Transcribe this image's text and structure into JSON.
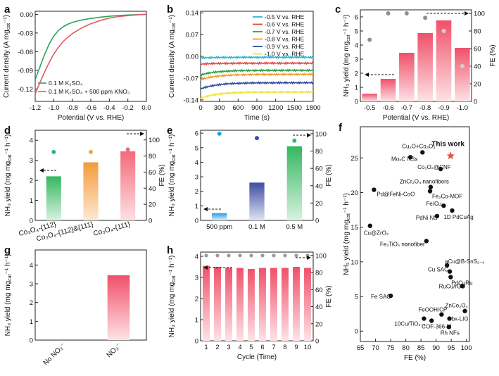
{
  "chart_data": [
    {
      "panel": "a",
      "type": "line",
      "xlabel": "Potential (V vs. RHE)",
      "ylabel": "Current density (A mg",
      "ylabel_sub": "cat",
      "ylabel_tail": "⁻¹)",
      "xlim": [
        -1.2,
        0.0
      ],
      "ylim": [
        -0.14,
        0.005
      ],
      "xticks": [
        -1.2,
        -1.0,
        -0.8,
        -0.6,
        -0.4,
        -0.2,
        0.0
      ],
      "xtick_labels": [
        "-1.2",
        "-1.0",
        "-0.8",
        "-0.6",
        "-0.4",
        "-0.2",
        "0.0"
      ],
      "yticks": [
        0.0,
        -0.03,
        -0.06,
        -0.09,
        -0.12
      ],
      "ytick_labels": [
        "0.00",
        "-0.03",
        "-0.06",
        "-0.09",
        "-0.12"
      ],
      "series": [
        {
          "name": "0.1 M K₂SO₄",
          "color": "#2ca25f",
          "x": [
            -1.2,
            -1.15,
            -1.1,
            -1.05,
            -1.0,
            -0.95,
            -0.9,
            -0.85,
            -0.8,
            -0.7,
            -0.6,
            -0.5,
            -0.4,
            -0.3,
            -0.2,
            -0.1,
            0.0
          ],
          "y": [
            -0.105,
            -0.085,
            -0.065,
            -0.048,
            -0.035,
            -0.026,
            -0.02,
            -0.016,
            -0.013,
            -0.009,
            -0.0065,
            -0.0045,
            -0.003,
            -0.0018,
            -0.001,
            -0.0004,
            0.0
          ]
        },
        {
          "name": "0.1 M K₂SO₄ + 500 ppm KNO₃",
          "color": "#e05a63",
          "x": [
            -1.2,
            -1.15,
            -1.1,
            -1.05,
            -1.0,
            -0.95,
            -0.9,
            -0.85,
            -0.8,
            -0.7,
            -0.6,
            -0.5,
            -0.4,
            -0.3,
            -0.2,
            -0.1,
            0.0
          ],
          "y": [
            -0.128,
            -0.11,
            -0.093,
            -0.078,
            -0.064,
            -0.053,
            -0.044,
            -0.037,
            -0.031,
            -0.022,
            -0.015,
            -0.01,
            -0.006,
            -0.0035,
            -0.002,
            -0.0008,
            0.0
          ]
        }
      ]
    },
    {
      "panel": "b",
      "type": "line",
      "xlabel": "Time (s)",
      "ylabel": "Current density (A mg",
      "ylabel_sub": "cat",
      "ylabel_tail": "⁻¹)",
      "xlim": [
        0,
        1800
      ],
      "ylim": [
        -0.145,
        0.145
      ],
      "xticks": [
        0,
        300,
        600,
        900,
        1200,
        1500,
        1800
      ],
      "xtick_labels": [
        "0",
        "300",
        "600",
        "900",
        "1200",
        "1500",
        "1800"
      ],
      "yticks": [
        0.14,
        0.07,
        0.0,
        -0.07,
        -0.14
      ],
      "ytick_labels": [
        "0.14",
        "0.07",
        "0.00",
        "-0.07",
        "-0.14"
      ],
      "series": [
        {
          "name": "-0.5 V vs. RHE",
          "color": "#27b6d6",
          "start": -0.005,
          "end": -0.003
        },
        {
          "name": "-0.6 V vs. RHE",
          "color": "#e4473f",
          "start": -0.025,
          "end": -0.022
        },
        {
          "name": "-0.7 V vs. RHE",
          "color": "#2e9e45",
          "start": -0.06,
          "end": -0.045
        },
        {
          "name": "-0.8 V vs. RHE",
          "color": "#f39c2b",
          "start": -0.075,
          "end": -0.058
        },
        {
          "name": "-0.9 V vs. RHE",
          "color": "#2d4aa0",
          "start": -0.105,
          "end": -0.085
        },
        {
          "name": "-1.0 V vs. RHE",
          "color": "#f2e23d",
          "start": -0.135,
          "end": -0.115
        }
      ]
    },
    {
      "panel": "c",
      "type": "bar",
      "xlabel": "Potential (V vs. RHE)",
      "ylabel": "NH₃ yield (mg mg",
      "ylabel_sub": "cat",
      "ylabel_tail": "⁻¹ h⁻¹)",
      "y2label": "FE (%)",
      "categories": [
        "-0.5",
        "-0.6",
        "-0.7",
        "-0.8",
        "-0.9",
        "-1.0"
      ],
      "values": [
        0.55,
        1.6,
        3.45,
        4.85,
        5.75,
        3.8
      ],
      "fe": [
        70,
        100,
        100,
        95,
        80,
        40
      ],
      "ylim": [
        0,
        6.5
      ],
      "yticks": [
        0,
        1,
        2,
        3,
        4,
        5,
        6
      ],
      "y2lim": [
        0,
        104
      ],
      "y2ticks": [
        0,
        20,
        40,
        60,
        80,
        100
      ]
    },
    {
      "panel": "d",
      "type": "bar",
      "ylabel": "NH₃ yield (mg mg",
      "ylabel_sub": "cat",
      "ylabel_tail": "⁻¹ h⁻¹)",
      "y2label": "FE (%)",
      "categories": [
        "Co₃O₄-{112}",
        "Co₃O₄-{112}&{111}",
        "Co₃O₄-{111}"
      ],
      "values": [
        2.2,
        2.9,
        3.45
      ],
      "fe": [
        85,
        85,
        88
      ],
      "bar_colors": [
        "#3cba63",
        "#f5a24e",
        "#f27d88"
      ],
      "dot_colors": [
        "#2db38d",
        "#f2a54a",
        "#ea6f73"
      ],
      "ylim": [
        0,
        4.5
      ],
      "yticks": [
        0,
        1,
        2,
        3,
        4
      ],
      "y2lim": [
        0,
        112
      ],
      "y2ticks": [
        0,
        20,
        40,
        60,
        80,
        100
      ]
    },
    {
      "panel": "e",
      "type": "bar",
      "ylabel": "NH₃ yield (mg mg",
      "ylabel_sub": "cat",
      "ylabel_tail": "⁻¹ h⁻¹)",
      "y2label": "FE (%)",
      "categories": [
        "500 ppm",
        "0.1 M",
        "0.5 M"
      ],
      "values": [
        0.5,
        2.6,
        5.1
      ],
      "fe": [
        100,
        95,
        92
      ],
      "bar_colors": [
        "#2f9fe0",
        "#4055a3",
        "#3cba63"
      ],
      "dot_colors": [
        "#1aa8e0",
        "#3a4fa0",
        "#38b46a"
      ],
      "ylim": [
        0,
        6.2
      ],
      "yticks": [
        0,
        1,
        2,
        3,
        4,
        5,
        6
      ],
      "y2lim": [
        0,
        104
      ],
      "y2ticks": [
        0,
        20,
        40,
        60,
        80,
        100
      ]
    },
    {
      "panel": "f",
      "type": "scatter",
      "xlabel": "FE (%)",
      "ylabel": "NH₃ yield (mg mg",
      "ylabel_sub": "cat",
      "ylabel_tail": "⁻¹ h⁻¹)",
      "xlim": [
        65,
        101
      ],
      "ylim": [
        -1.5,
        29.5
      ],
      "xticks": [
        65,
        70,
        75,
        80,
        85,
        90,
        95,
        100
      ],
      "yticks": [
        0,
        5,
        10,
        15,
        20,
        25
      ],
      "highlight": {
        "label": "This work",
        "x": 94.8,
        "y": 25.3,
        "color": "#e8503a"
      },
      "points": [
        {
          "label": "Cu₂O+Co₃O₄",
          "x": 85.5,
          "y": 25.8
        },
        {
          "label": "Mo₂C NSs",
          "x": 81.5,
          "y": 25.1
        },
        {
          "label": "Co₃O₄@CNF",
          "x": 91.5,
          "y": 23.4
        },
        {
          "label": "ZnCr₂O₄ nanofibers",
          "x": 88.2,
          "y": 20.8
        },
        {
          "label": "Pd@FeNi-CoO",
          "x": 69.5,
          "y": 20.4
        },
        {
          "label": "Fe₂Co-MOF",
          "x": 88.0,
          "y": 20.2
        },
        {
          "label": "Fe/Cu",
          "x": 92.5,
          "y": 18.1
        },
        {
          "label": "1D PdCuAg",
          "x": 95.3,
          "y": 17.4
        },
        {
          "label": "PdNi NS",
          "x": 90.3,
          "y": 16.6
        },
        {
          "label": "Cu@ZrO₂",
          "x": 68.2,
          "y": 15.2
        },
        {
          "label": "Fe₂TiO₅ nanofiber",
          "x": 86.8,
          "y": 13.0
        },
        {
          "label": "aCu@B-SnS₂₋ₓ",
          "x": 93.6,
          "y": 9.5
        },
        {
          "label": "Cu SAC",
          "x": 94.5,
          "y": 8.6
        },
        {
          "label": "PdCuRu",
          "x": 94.8,
          "y": 7.8
        },
        {
          "label": "RuCu/rGO",
          "x": 98.6,
          "y": 6.5
        },
        {
          "label": "Fe SAC",
          "x": 75.0,
          "y": 5.1
        },
        {
          "label": "ZnCo₂O₄",
          "x": 99.5,
          "y": 2.9
        },
        {
          "label": "FeOOH/CP",
          "x": 91.8,
          "y": 2.4
        },
        {
          "label": "bx-LIG",
          "x": 94.4,
          "y": 1.8
        },
        {
          "label": "COF-366-M",
          "x": 88.5,
          "y": 1.5
        },
        {
          "label": "10Cu/TiO₂₋ₓ",
          "x": 86.0,
          "y": 1.8
        },
        {
          "label": "Rh NFs",
          "x": 94.2,
          "y": 0.6
        }
      ]
    },
    {
      "panel": "g",
      "type": "bar",
      "ylabel": "NH₃ yield (mg mg",
      "ylabel_sub": "cat",
      "ylabel_tail": "⁻¹ h⁻¹)",
      "categories": [
        "No NO₃⁻",
        "NO₃⁻"
      ],
      "values": [
        0.0,
        3.45
      ],
      "ylim": [
        0,
        4.8
      ],
      "yticks": [
        0,
        1,
        2,
        3,
        4
      ]
    },
    {
      "panel": "h",
      "type": "bar",
      "xlabel": "Cycle (Time)",
      "ylabel": "NH₃ yield (mg mg",
      "ylabel_sub": "cat",
      "ylabel_tail": "⁻¹ h⁻¹)",
      "y2label": "FE (%)",
      "categories": [
        "1",
        "2",
        "3",
        "4",
        "5",
        "6",
        "7",
        "8",
        "9",
        "10"
      ],
      "values": [
        3.55,
        3.5,
        3.45,
        3.45,
        3.4,
        3.45,
        3.45,
        3.45,
        3.5,
        3.45
      ],
      "fe": [
        100,
        100,
        100,
        100,
        100,
        100,
        100,
        100,
        100,
        100
      ],
      "ylim": [
        0,
        4.2
      ],
      "yticks": [
        0,
        1,
        2,
        3,
        4
      ],
      "y2lim": [
        0,
        104
      ],
      "y2ticks": [
        0,
        20,
        40,
        60,
        80,
        100
      ]
    }
  ],
  "panel_letters": [
    "a",
    "b",
    "c",
    "d",
    "e",
    "f",
    "g",
    "h"
  ]
}
